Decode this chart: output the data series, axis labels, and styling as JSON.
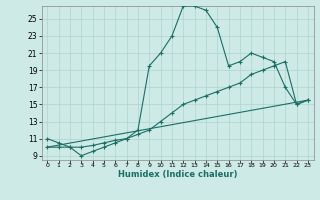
{
  "title": "",
  "xlabel": "Humidex (Indice chaleur)",
  "ylabel": "",
  "background_color": "#ceeae6",
  "grid_color": "#aed4cf",
  "line_color": "#1a6e64",
  "xlim": [
    -0.5,
    23.5
  ],
  "ylim": [
    8.5,
    26.5
  ],
  "x_ticks": [
    0,
    1,
    2,
    3,
    4,
    5,
    6,
    7,
    8,
    9,
    10,
    11,
    12,
    13,
    14,
    15,
    16,
    17,
    18,
    19,
    20,
    21,
    22,
    23
  ],
  "y_ticks": [
    9,
    11,
    13,
    15,
    17,
    19,
    21,
    23,
    25
  ],
  "curve1_x": [
    0,
    1,
    2,
    3,
    4,
    5,
    6,
    7,
    8,
    9,
    10,
    11,
    12,
    13,
    14,
    15,
    16,
    17,
    18,
    19,
    20,
    21,
    22,
    23
  ],
  "curve1_y": [
    11.0,
    10.5,
    10.0,
    9.0,
    9.5,
    10.0,
    10.5,
    11.0,
    12.0,
    19.5,
    21.0,
    23.0,
    26.5,
    26.5,
    26.0,
    24.0,
    19.5,
    20.0,
    21.0,
    20.5,
    20.0,
    17.0,
    15.0,
    15.5
  ],
  "curve2_x": [
    0,
    1,
    2,
    3,
    4,
    5,
    6,
    7,
    8,
    9,
    10,
    11,
    12,
    13,
    14,
    15,
    16,
    17,
    18,
    19,
    20,
    21,
    22,
    23
  ],
  "curve2_y": [
    10.0,
    10.0,
    10.0,
    10.0,
    10.2,
    10.5,
    10.8,
    11.0,
    11.5,
    12.0,
    13.0,
    14.0,
    15.0,
    15.5,
    16.0,
    16.5,
    17.0,
    17.5,
    18.5,
    19.0,
    19.5,
    20.0,
    15.0,
    15.5
  ],
  "curve3_x": [
    0,
    23
  ],
  "curve3_y": [
    10.0,
    15.5
  ]
}
